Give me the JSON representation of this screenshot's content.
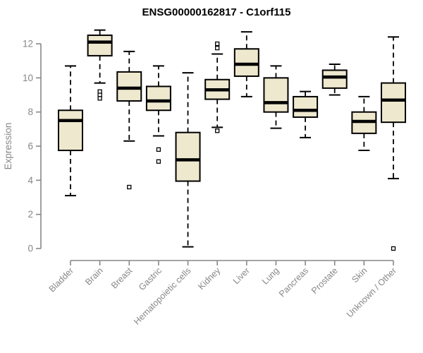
{
  "title": "ENSG00000162817 - C1orf115",
  "colors": {
    "box_fill": "#EEE8CE",
    "box_border": "#000000",
    "median": "#000000",
    "whisker": "#000000",
    "outlier_stroke": "#000000",
    "outlier_fill": "#FFFFFF",
    "axis": "#878787",
    "title": "#000000",
    "background": "#FFFFFF"
  },
  "chart_data": {
    "type": "boxplot",
    "title": "ENSG00000162817 - C1orf115",
    "xlabel": "",
    "ylabel": "Expression",
    "ylim": [
      0,
      12
    ],
    "yticks": [
      0,
      2,
      4,
      6,
      8,
      10,
      12
    ],
    "grid": false,
    "legend": "none",
    "whisker_style": "dashed",
    "outlier_marker": "open-square",
    "categories": [
      "Bladder",
      "Brain",
      "Breast",
      "Gastric",
      "Hematopoietic cells",
      "Kidney",
      "Liver",
      "Lung",
      "Pancreas",
      "Prostate",
      "Skin",
      "Unknown / Other"
    ],
    "series": [
      {
        "category": "Bladder",
        "whisker_low": 3.1,
        "q1": 5.75,
        "median": 7.5,
        "q3": 8.1,
        "whisker_high": 10.7,
        "outliers": []
      },
      {
        "category": "Brain",
        "whisker_low": 9.7,
        "q1": 11.3,
        "median": 12.1,
        "q3": 12.5,
        "whisker_high": 12.8,
        "outliers": [
          9.2,
          9.0,
          8.8
        ]
      },
      {
        "category": "Breast",
        "whisker_low": 6.3,
        "q1": 8.65,
        "median": 9.4,
        "q3": 10.35,
        "whisker_high": 11.55,
        "outliers": [
          3.6
        ]
      },
      {
        "category": "Gastric",
        "whisker_low": 6.6,
        "q1": 8.1,
        "median": 8.65,
        "q3": 9.5,
        "whisker_high": 10.7,
        "outliers": [
          5.8,
          5.1
        ]
      },
      {
        "category": "Hematopoietic cells",
        "whisker_low": 0.1,
        "q1": 3.95,
        "median": 5.2,
        "q3": 6.8,
        "whisker_high": 10.3,
        "outliers": []
      },
      {
        "category": "Kidney",
        "whisker_low": 7.1,
        "q1": 8.75,
        "median": 9.3,
        "q3": 9.9,
        "whisker_high": 11.4,
        "outliers": [
          12.0,
          11.75,
          6.9
        ]
      },
      {
        "category": "Liver",
        "whisker_low": 8.9,
        "q1": 10.1,
        "median": 10.8,
        "q3": 11.7,
        "whisker_high": 12.7,
        "outliers": []
      },
      {
        "category": "Lung",
        "whisker_low": 7.05,
        "q1": 8.0,
        "median": 8.55,
        "q3": 10.0,
        "whisker_high": 10.7,
        "outliers": []
      },
      {
        "category": "Pancreas",
        "whisker_low": 6.5,
        "q1": 7.7,
        "median": 8.1,
        "q3": 8.9,
        "whisker_high": 9.2,
        "outliers": []
      },
      {
        "category": "Prostate",
        "whisker_low": 9.0,
        "q1": 9.4,
        "median": 10.05,
        "q3": 10.45,
        "whisker_high": 10.8,
        "outliers": []
      },
      {
        "category": "Skin",
        "whisker_low": 5.75,
        "q1": 6.75,
        "median": 7.45,
        "q3": 8.0,
        "whisker_high": 8.9,
        "outliers": []
      },
      {
        "category": "Unknown / Other",
        "whisker_low": 4.1,
        "q1": 7.4,
        "median": 8.7,
        "q3": 9.7,
        "whisker_high": 12.4,
        "outliers": [
          0.0
        ]
      }
    ]
  }
}
